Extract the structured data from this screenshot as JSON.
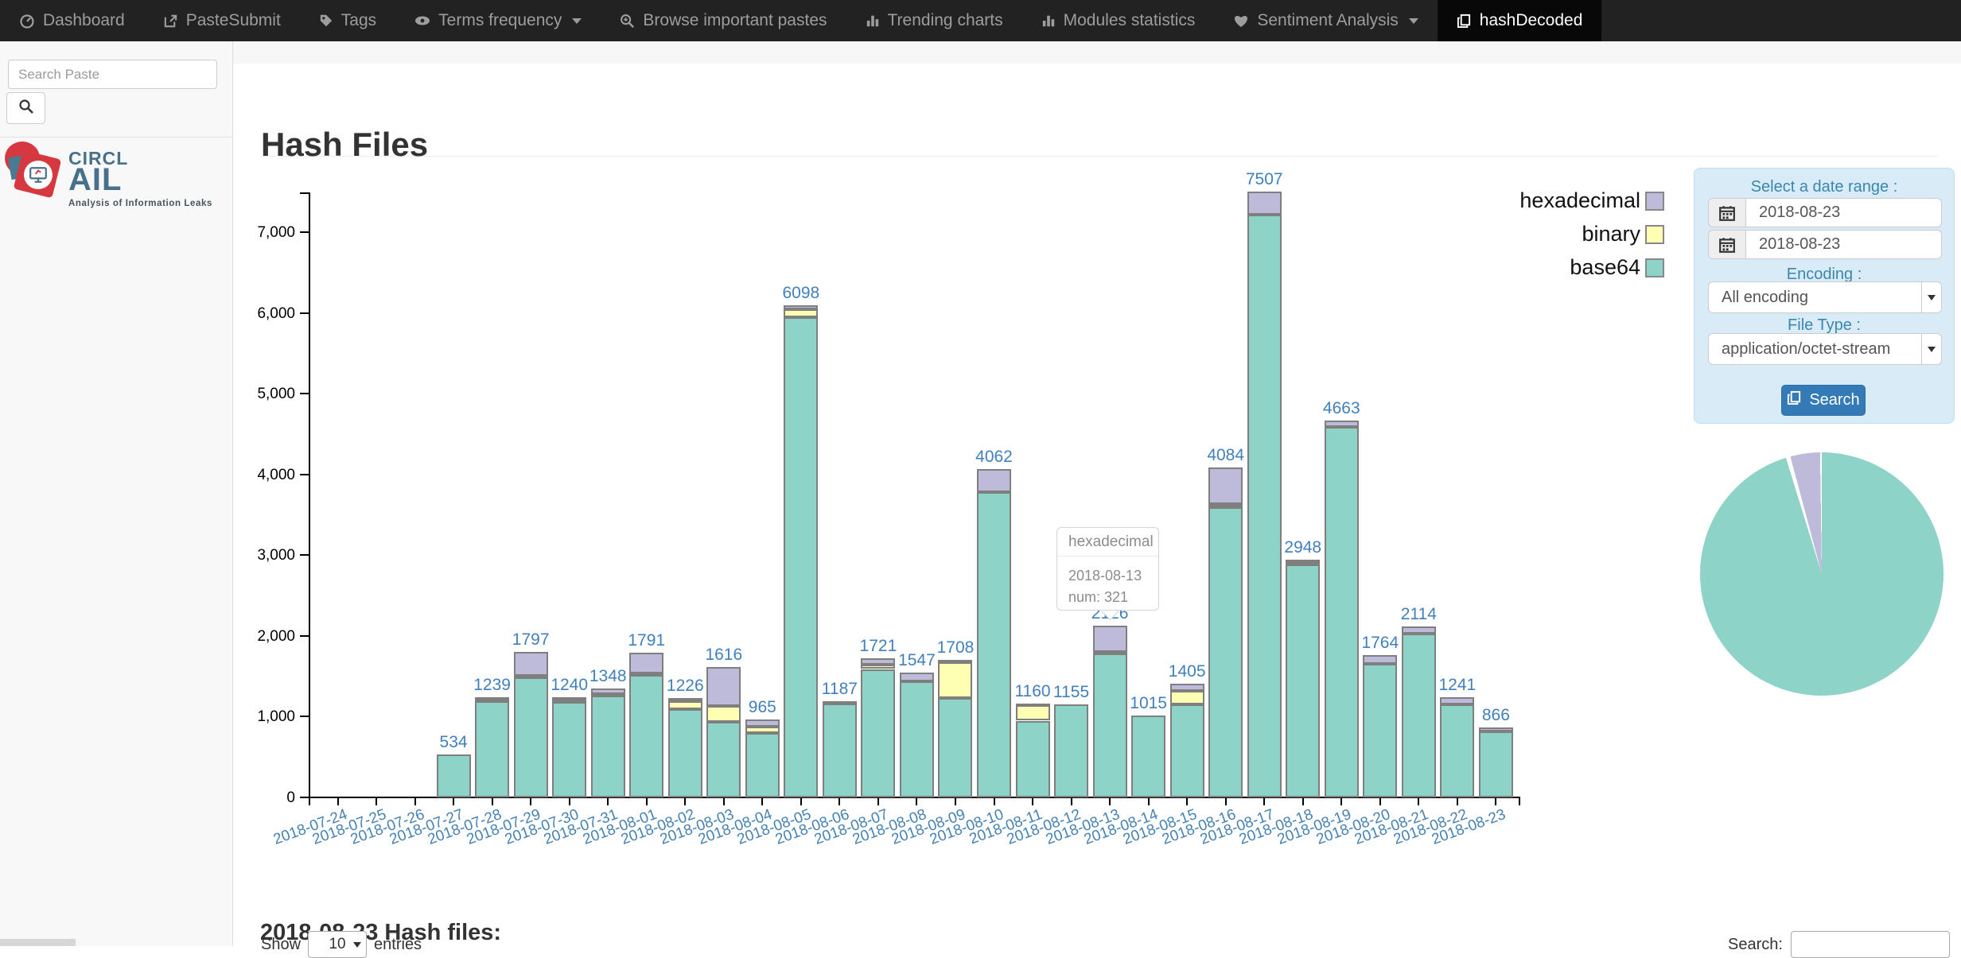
{
  "navbar": {
    "items": [
      {
        "label": "Dashboard",
        "icon": "tachometer-icon",
        "active": false,
        "caret": false
      },
      {
        "label": "PasteSubmit",
        "icon": "external-link-icon",
        "active": false,
        "caret": false
      },
      {
        "label": "Tags",
        "icon": "tag-icon",
        "active": false,
        "caret": false
      },
      {
        "label": "Terms frequency",
        "icon": "eye-icon",
        "active": false,
        "caret": true
      },
      {
        "label": "Browse important pastes",
        "icon": "search-plus-icon",
        "active": false,
        "caret": false
      },
      {
        "label": "Trending charts",
        "icon": "bar-chart-icon",
        "active": false,
        "caret": false
      },
      {
        "label": "Modules statistics",
        "icon": "bar-chart-icon",
        "active": false,
        "caret": false
      },
      {
        "label": "Sentiment Analysis",
        "icon": "heart-icon",
        "active": false,
        "caret": true
      },
      {
        "label": "hashDecoded",
        "icon": "files-icon",
        "active": true,
        "caret": false
      }
    ]
  },
  "sidebar": {
    "search_placeholder": "Search Paste",
    "logo": {
      "line1": "CIRCL",
      "line2": "AIL",
      "tagline": "Analysis of Information Leaks"
    }
  },
  "page": {
    "title": "Hash Files",
    "section_heading": "2018-08-23 Hash files:"
  },
  "filters": {
    "date_range_label": "Select a date range :",
    "date_from": "2018-08-23",
    "date_to": "2018-08-23",
    "encoding_label": "Encoding :",
    "encoding_value": "All encoding",
    "file_type_label": "File Type :",
    "file_type_value": "application/octet-stream",
    "search_button_label": "Search"
  },
  "tooltip": {
    "title": "hexadecimal",
    "date": "2018-08-13",
    "value_line": "num: 321"
  },
  "table_controls": {
    "show_label": "Show",
    "page_size": "10",
    "entries_label": "entries",
    "search_label": "Search:"
  },
  "colors": {
    "base64": "#8dd3c7",
    "binary": "#ffffb3",
    "hexadecimal": "#bebada",
    "bar_border": "#7f7f7f",
    "label_blue": "#4180bd",
    "axis_label_blue": "#4682b4",
    "panel_bg": "#d8ebf6",
    "button_blue": "#337ab7",
    "navbar_bg": "#222222",
    "navbar_active_bg": "#080808"
  },
  "chart_data": {
    "type": "bar",
    "stacked": true,
    "title": "",
    "xlabel": "",
    "ylabel": "",
    "ylim": [
      0,
      7500
    ],
    "yticks": [
      0,
      1000,
      2000,
      3000,
      4000,
      5000,
      6000,
      7000
    ],
    "grid": false,
    "legend_position": "top-right",
    "categories": [
      "2018-07-24",
      "2018-07-25",
      "2018-07-26",
      "2018-07-27",
      "2018-07-28",
      "2018-07-29",
      "2018-07-30",
      "2018-07-31",
      "2018-08-01",
      "2018-08-02",
      "2018-08-03",
      "2018-08-04",
      "2018-08-05",
      "2018-08-06",
      "2018-08-07",
      "2018-08-08",
      "2018-08-09",
      "2018-08-10",
      "2018-08-11",
      "2018-08-12",
      "2018-08-13",
      "2018-08-14",
      "2018-08-15",
      "2018-08-16",
      "2018-08-17",
      "2018-08-18",
      "2018-08-19",
      "2018-08-20",
      "2018-08-21",
      "2018-08-22",
      "2018-08-23"
    ],
    "series": [
      {
        "name": "base64",
        "color": "#8dd3c7",
        "values": [
          0,
          0,
          0,
          534,
          1205,
          1500,
          1185,
          1270,
          1525,
          1090,
          940,
          800,
          5950,
          1160,
          1590,
          1440,
          1230,
          3780,
          950,
          1155,
          1800,
          1015,
          1150,
          3590,
          7215,
          2880,
          4585,
          1650,
          2030,
          1155,
          820
        ]
      },
      {
        "name": "binary",
        "color": "#ffffb3",
        "values": [
          0,
          0,
          0,
          0,
          4,
          10,
          25,
          8,
          6,
          100,
          190,
          78,
          100,
          0,
          55,
          0,
          445,
          0,
          205,
          0,
          5,
          0,
          170,
          40,
          0,
          55,
          0,
          0,
          0,
          0,
          0
        ]
      },
      {
        "name": "hexadecimal",
        "color": "#bebada",
        "values": [
          0,
          0,
          0,
          0,
          30,
          287,
          30,
          70,
          260,
          36,
          486,
          87,
          48,
          27,
          76,
          107,
          33,
          282,
          5,
          0,
          321,
          0,
          85,
          454,
          292,
          13,
          78,
          114,
          84,
          86,
          46
        ]
      }
    ],
    "totals": [
      0,
      0,
      0,
      534,
      1239,
      1797,
      1240,
      1348,
      1791,
      1226,
      1616,
      965,
      6098,
      1187,
      1721,
      1547,
      1708,
      4062,
      1160,
      1155,
      2126,
      1015,
      1405,
      4084,
      7507,
      2948,
      4663,
      1764,
      2114,
      1241,
      866
    ],
    "legend": [
      {
        "label": "hexadecimal",
        "color": "#bebada"
      },
      {
        "label": "binary",
        "color": "#ffffb3"
      },
      {
        "label": "base64",
        "color": "#8dd3c7"
      }
    ],
    "pie": {
      "type": "pie",
      "slices": [
        {
          "label": "base64",
          "fraction": 0.954,
          "color": "#8dd3c7"
        },
        {
          "label": "hexadecimal",
          "fraction": 0.046,
          "color": "#bebada"
        }
      ]
    }
  }
}
